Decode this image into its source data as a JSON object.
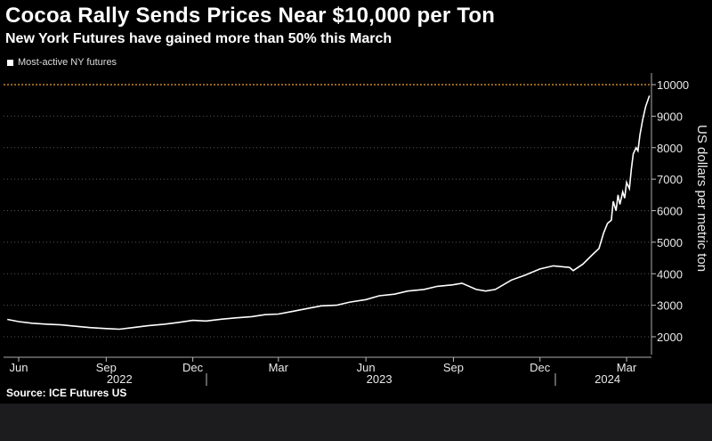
{
  "header": {
    "title": "Cocoa Rally Sends Prices Near $10,000 per Ton",
    "subtitle": "New York Futures have gained more than 50% this March"
  },
  "legend": {
    "label": "Most-active NY futures"
  },
  "footer": {
    "source": "Source: ICE Futures US"
  },
  "colors": {
    "line": "#ffffff",
    "reference": "#f0a030",
    "grid": "#5a5a5a",
    "background": "#000000"
  },
  "chart_data": {
    "type": "line",
    "ylabel": "US dollars per metric ton",
    "ylim": [
      1800,
      10250
    ],
    "yticks": [
      2000,
      3000,
      4000,
      5000,
      6000,
      7000,
      8000,
      9000,
      10000
    ],
    "reference_line": 10000,
    "grid": "horizontal dotted",
    "legend_position": "top-left",
    "x_tick_labels": [
      {
        "label": "Jun",
        "date": "2022-06-01"
      },
      {
        "label": "Sep",
        "date": "2022-09-01"
      },
      {
        "label": "Dec",
        "date": "2022-12-01"
      },
      {
        "label": "Mar",
        "date": "2023-03-01"
      },
      {
        "label": "Jun",
        "date": "2023-06-01"
      },
      {
        "label": "Sep",
        "date": "2023-09-01"
      },
      {
        "label": "Dec",
        "date": "2023-12-01"
      },
      {
        "label": "Mar",
        "date": "2024-03-01"
      }
    ],
    "year_labels": [
      {
        "label": "2022",
        "date": "2022-09-15"
      },
      {
        "label": "2023",
        "date": "2023-06-15"
      },
      {
        "label": "2024",
        "date": "2024-02-10"
      }
    ],
    "series": [
      {
        "name": "Most-active NY futures",
        "points": [
          [
            "2022-05-20",
            2550
          ],
          [
            "2022-06-01",
            2480
          ],
          [
            "2022-06-15",
            2430
          ],
          [
            "2022-07-01",
            2400
          ],
          [
            "2022-07-15",
            2380
          ],
          [
            "2022-08-01",
            2330
          ],
          [
            "2022-08-15",
            2290
          ],
          [
            "2022-09-01",
            2260
          ],
          [
            "2022-09-15",
            2240
          ],
          [
            "2022-10-01",
            2300
          ],
          [
            "2022-10-15",
            2350
          ],
          [
            "2022-11-01",
            2400
          ],
          [
            "2022-11-15",
            2450
          ],
          [
            "2022-12-01",
            2520
          ],
          [
            "2022-12-15",
            2500
          ],
          [
            "2023-01-01",
            2560
          ],
          [
            "2023-01-15",
            2600
          ],
          [
            "2023-02-01",
            2640
          ],
          [
            "2023-02-15",
            2700
          ],
          [
            "2023-03-01",
            2720
          ],
          [
            "2023-03-15",
            2800
          ],
          [
            "2023-04-01",
            2900
          ],
          [
            "2023-04-15",
            2980
          ],
          [
            "2023-05-01",
            3000
          ],
          [
            "2023-05-15",
            3100
          ],
          [
            "2023-06-01",
            3180
          ],
          [
            "2023-06-15",
            3300
          ],
          [
            "2023-07-01",
            3350
          ],
          [
            "2023-07-15",
            3450
          ],
          [
            "2023-08-01",
            3500
          ],
          [
            "2023-08-15",
            3600
          ],
          [
            "2023-09-01",
            3650
          ],
          [
            "2023-09-10",
            3700
          ],
          [
            "2023-09-25",
            3500
          ],
          [
            "2023-10-05",
            3450
          ],
          [
            "2023-10-15",
            3500
          ],
          [
            "2023-11-01",
            3800
          ],
          [
            "2023-11-15",
            3950
          ],
          [
            "2023-12-01",
            4150
          ],
          [
            "2023-12-15",
            4250
          ],
          [
            "2024-01-01",
            4200
          ],
          [
            "2024-01-05",
            4100
          ],
          [
            "2024-01-15",
            4300
          ],
          [
            "2024-01-25",
            4600
          ],
          [
            "2024-02-01",
            4800
          ],
          [
            "2024-02-06",
            5300
          ],
          [
            "2024-02-10",
            5600
          ],
          [
            "2024-02-14",
            5700
          ],
          [
            "2024-02-16",
            6300
          ],
          [
            "2024-02-19",
            6000
          ],
          [
            "2024-02-21",
            6500
          ],
          [
            "2024-02-23",
            6200
          ],
          [
            "2024-02-26",
            6600
          ],
          [
            "2024-02-28",
            6400
          ],
          [
            "2024-03-01",
            6900
          ],
          [
            "2024-03-04",
            6700
          ],
          [
            "2024-03-06",
            7300
          ],
          [
            "2024-03-08",
            7800
          ],
          [
            "2024-03-11",
            8000
          ],
          [
            "2024-03-13",
            7900
          ],
          [
            "2024-03-15",
            8400
          ],
          [
            "2024-03-18",
            8900
          ],
          [
            "2024-03-21",
            9300
          ],
          [
            "2024-03-25",
            9650
          ]
        ]
      }
    ]
  }
}
